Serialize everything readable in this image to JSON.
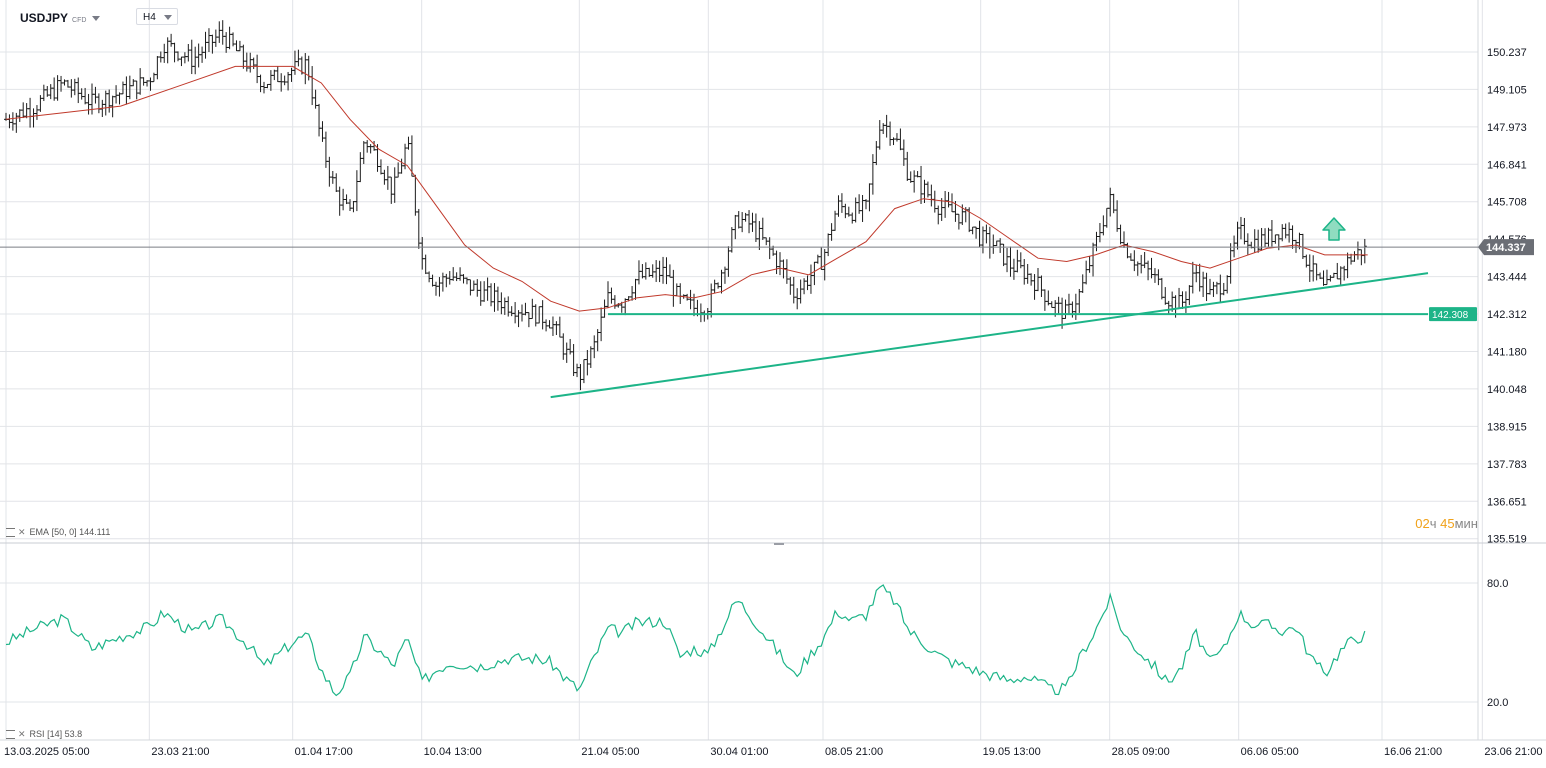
{
  "header": {
    "symbol": "USDJPY",
    "symbol_tag": "CFD",
    "timeframe": "H4"
  },
  "indicators": {
    "ema": {
      "label": "EMA",
      "params": "[50, 0]",
      "value": "144.111",
      "color": "#c0392b"
    },
    "rsi": {
      "label": "RSI",
      "params": "[14]",
      "value": "53.8",
      "color": "#1db488"
    }
  },
  "timer": {
    "hours": "02",
    "hours_unit": "ч",
    "minutes": "45",
    "minutes_unit": "мин"
  },
  "colors": {
    "candle": "#1a1a1a",
    "grid": "#e2e4e8",
    "trend": "#1db488",
    "price_tag": "#6b6e75"
  },
  "chart_data": [
    {
      "type": "candlestick",
      "title": "USDJPY",
      "x_tick_labels": [
        "13.03.2025  05:00",
        "23.03  21:00",
        "01.04  17:00",
        "10.04  13:00",
        "21.04  05:00",
        "30.04  01:00",
        "08.05  21:00",
        "19.05  13:00",
        "28.05  09:00",
        "06.06  05:00",
        "16.06  21:00",
        "23.06  21:00"
      ],
      "y_tick_labels": [
        "150.237",
        "149.105",
        "147.973",
        "146.841",
        "145.708",
        "144.576",
        "143.444",
        "142.312",
        "141.180",
        "140.048",
        "138.915",
        "137.783",
        "136.651",
        "135.519"
      ],
      "ylim": [
        135.519,
        150.8
      ],
      "current_price": "144.337",
      "support_level": {
        "value": 142.308,
        "label": "142.308"
      },
      "ascending_trendline": {
        "start": {
          "date": "19.04",
          "price": 139.8
        },
        "end": {
          "date": "16.06",
          "price": 143.55
        }
      },
      "signal": "up-arrow",
      "close_path": [
        {
          "date": "13.03",
          "price": 148.2
        },
        {
          "date": "15.03",
          "price": 148.6
        },
        {
          "date": "17.03",
          "price": 149.3
        },
        {
          "date": "19.03",
          "price": 148.7
        },
        {
          "date": "21.03",
          "price": 149.0
        },
        {
          "date": "23.03",
          "price": 149.4
        },
        {
          "date": "24.03",
          "price": 150.5
        },
        {
          "date": "26.03",
          "price": 150.0
        },
        {
          "date": "28.03",
          "price": 150.8
        },
        {
          "date": "30.03",
          "price": 149.8
        },
        {
          "date": "31.03",
          "price": 149.3
        },
        {
          "date": "01.04",
          "price": 149.7
        },
        {
          "date": "02.04",
          "price": 149.9
        },
        {
          "date": "03.04",
          "price": 147.5
        },
        {
          "date": "04.04",
          "price": 146.0
        },
        {
          "date": "05.04",
          "price": 145.3
        },
        {
          "date": "06.04",
          "price": 147.6
        },
        {
          "date": "07.04",
          "price": 147.0
        },
        {
          "date": "08.04",
          "price": 146.0
        },
        {
          "date": "09.04",
          "price": 147.5
        },
        {
          "date": "10.04",
          "price": 144.0
        },
        {
          "date": "11.04",
          "price": 143.2
        },
        {
          "date": "12.04",
          "price": 143.5
        },
        {
          "date": "14.04",
          "price": 143.0
        },
        {
          "date": "16.04",
          "price": 142.6
        },
        {
          "date": "18.04",
          "price": 142.3
        },
        {
          "date": "19.04",
          "price": 142.1
        },
        {
          "date": "20.04",
          "price": 141.2
        },
        {
          "date": "21.04",
          "price": 140.4
        },
        {
          "date": "22.04",
          "price": 141.3
        },
        {
          "date": "23.04",
          "price": 142.8
        },
        {
          "date": "24.04",
          "price": 142.7
        },
        {
          "date": "25.04",
          "price": 143.4
        },
        {
          "date": "27.04",
          "price": 143.6
        },
        {
          "date": "28.04",
          "price": 142.7
        },
        {
          "date": "29.04",
          "price": 142.5
        },
        {
          "date": "30.04",
          "price": 142.6
        },
        {
          "date": "01.05",
          "price": 143.7
        },
        {
          "date": "02.05",
          "price": 145.2
        },
        {
          "date": "03.05",
          "price": 145.0
        },
        {
          "date": "05.05",
          "price": 143.8
        },
        {
          "date": "06.05",
          "price": 142.9
        },
        {
          "date": "07.05",
          "price": 143.4
        },
        {
          "date": "08.05",
          "price": 144.0
        },
        {
          "date": "09.05",
          "price": 145.6
        },
        {
          "date": "10.05",
          "price": 145.4
        },
        {
          "date": "11.05",
          "price": 145.5
        },
        {
          "date": "12.05",
          "price": 148.2
        },
        {
          "date": "13.05",
          "price": 147.7
        },
        {
          "date": "14.05",
          "price": 146.5
        },
        {
          "date": "15.05",
          "price": 146.1
        },
        {
          "date": "16.05",
          "price": 145.6
        },
        {
          "date": "17.05",
          "price": 145.4
        },
        {
          "date": "18.05",
          "price": 145.2
        },
        {
          "date": "19.05",
          "price": 144.6
        },
        {
          "date": "20.05",
          "price": 144.4
        },
        {
          "date": "21.05",
          "price": 143.8
        },
        {
          "date": "22.05",
          "price": 143.6
        },
        {
          "date": "23.05",
          "price": 143.2
        },
        {
          "date": "24.05",
          "price": 142.6
        },
        {
          "date": "25.05",
          "price": 142.3
        },
        {
          "date": "26.05",
          "price": 143.0
        },
        {
          "date": "27.05",
          "price": 144.4
        },
        {
          "date": "28.05",
          "price": 145.8
        },
        {
          "date": "29.05",
          "price": 144.4
        },
        {
          "date": "30.05",
          "price": 143.8
        },
        {
          "date": "31.05",
          "price": 143.5
        },
        {
          "date": "01.06",
          "price": 142.8
        },
        {
          "date": "02.06",
          "price": 142.6
        },
        {
          "date": "03.06",
          "price": 143.6
        },
        {
          "date": "04.06",
          "price": 142.9
        },
        {
          "date": "05.06",
          "price": 143.3
        },
        {
          "date": "06.06",
          "price": 144.8
        },
        {
          "date": "07.06",
          "price": 144.5
        },
        {
          "date": "08.06",
          "price": 144.6
        },
        {
          "date": "09.06",
          "price": 144.9
        },
        {
          "date": "10.06",
          "price": 144.7
        },
        {
          "date": "11.06",
          "price": 143.7
        },
        {
          "date": "12.06",
          "price": 143.0
        },
        {
          "date": "13.06",
          "price": 143.6
        },
        {
          "date": "14.06",
          "price": 144.1
        },
        {
          "date": "15.06",
          "price": 144.3
        }
      ],
      "ema_path": [
        {
          "date": "13.03",
          "price": 148.2
        },
        {
          "date": "17.03",
          "price": 148.4
        },
        {
          "date": "21.03",
          "price": 148.6
        },
        {
          "date": "25.03",
          "price": 149.2
        },
        {
          "date": "29.03",
          "price": 149.8
        },
        {
          "date": "01.04",
          "price": 149.8
        },
        {
          "date": "03.04",
          "price": 149.3
        },
        {
          "date": "05.04",
          "price": 148.2
        },
        {
          "date": "07.04",
          "price": 147.3
        },
        {
          "date": "09.04",
          "price": 146.8
        },
        {
          "date": "11.04",
          "price": 145.6
        },
        {
          "date": "13.04",
          "price": 144.4
        },
        {
          "date": "15.04",
          "price": 143.7
        },
        {
          "date": "17.04",
          "price": 143.3
        },
        {
          "date": "19.04",
          "price": 142.7
        },
        {
          "date": "21.04",
          "price": 142.4
        },
        {
          "date": "23.04",
          "price": 142.5
        },
        {
          "date": "25.04",
          "price": 142.8
        },
        {
          "date": "27.04",
          "price": 142.9
        },
        {
          "date": "29.04",
          "price": 142.8
        },
        {
          "date": "01.05",
          "price": 143.0
        },
        {
          "date": "03.05",
          "price": 143.5
        },
        {
          "date": "05.05",
          "price": 143.7
        },
        {
          "date": "07.05",
          "price": 143.5
        },
        {
          "date": "09.05",
          "price": 144.0
        },
        {
          "date": "11.05",
          "price": 144.5
        },
        {
          "date": "13.05",
          "price": 145.5
        },
        {
          "date": "15.05",
          "price": 145.8
        },
        {
          "date": "17.05",
          "price": 145.7
        },
        {
          "date": "19.05",
          "price": 145.2
        },
        {
          "date": "21.05",
          "price": 144.6
        },
        {
          "date": "23.05",
          "price": 144.0
        },
        {
          "date": "25.05",
          "price": 143.9
        },
        {
          "date": "27.05",
          "price": 144.1
        },
        {
          "date": "29.05",
          "price": 144.4
        },
        {
          "date": "31.05",
          "price": 144.2
        },
        {
          "date": "02.06",
          "price": 143.9
        },
        {
          "date": "04.06",
          "price": 143.7
        },
        {
          "date": "06.06",
          "price": 144.0
        },
        {
          "date": "08.06",
          "price": 144.3
        },
        {
          "date": "10.06",
          "price": 144.4
        },
        {
          "date": "12.06",
          "price": 144.1
        },
        {
          "date": "15.06",
          "price": 144.1
        }
      ]
    },
    {
      "type": "line",
      "title": "RSI [14]",
      "y_tick_labels": [
        "80.0",
        "20.0"
      ],
      "ylim": [
        15,
        85
      ],
      "path": [
        {
          "date": "13.03",
          "value": 50
        },
        {
          "date": "15.03",
          "value": 57
        },
        {
          "date": "17.03",
          "value": 62
        },
        {
          "date": "19.03",
          "value": 47
        },
        {
          "date": "21.03",
          "value": 53
        },
        {
          "date": "23.03",
          "value": 58
        },
        {
          "date": "24.03",
          "value": 65
        },
        {
          "date": "26.03",
          "value": 55
        },
        {
          "date": "28.03",
          "value": 62
        },
        {
          "date": "30.03",
          "value": 48
        },
        {
          "date": "31.03",
          "value": 38
        },
        {
          "date": "01.04",
          "value": 50
        },
        {
          "date": "02.04",
          "value": 54
        },
        {
          "date": "03.04",
          "value": 36
        },
        {
          "date": "04.04",
          "value": 24
        },
        {
          "date": "05.04",
          "value": 33
        },
        {
          "date": "06.04",
          "value": 53
        },
        {
          "date": "07.04",
          "value": 46
        },
        {
          "date": "08.04",
          "value": 38
        },
        {
          "date": "09.04",
          "value": 52
        },
        {
          "date": "10.04",
          "value": 30
        },
        {
          "date": "11.04",
          "value": 36
        },
        {
          "date": "12.04",
          "value": 40
        },
        {
          "date": "14.04",
          "value": 38
        },
        {
          "date": "16.04",
          "value": 42
        },
        {
          "date": "18.04",
          "value": 42
        },
        {
          "date": "19.04",
          "value": 40
        },
        {
          "date": "20.04",
          "value": 32
        },
        {
          "date": "21.04",
          "value": 26
        },
        {
          "date": "22.04",
          "value": 42
        },
        {
          "date": "23.04",
          "value": 57
        },
        {
          "date": "24.04",
          "value": 55
        },
        {
          "date": "25.04",
          "value": 60
        },
        {
          "date": "27.04",
          "value": 61
        },
        {
          "date": "28.04",
          "value": 43
        },
        {
          "date": "29.04",
          "value": 47
        },
        {
          "date": "30.04",
          "value": 44
        },
        {
          "date": "01.05",
          "value": 58
        },
        {
          "date": "02.05",
          "value": 72
        },
        {
          "date": "03.05",
          "value": 63
        },
        {
          "date": "05.05",
          "value": 44
        },
        {
          "date": "06.05",
          "value": 33
        },
        {
          "date": "07.05",
          "value": 43
        },
        {
          "date": "08.05",
          "value": 52
        },
        {
          "date": "09.05",
          "value": 66
        },
        {
          "date": "10.05",
          "value": 61
        },
        {
          "date": "11.05",
          "value": 64
        },
        {
          "date": "12.05",
          "value": 78
        },
        {
          "date": "13.05",
          "value": 71
        },
        {
          "date": "14.05",
          "value": 56
        },
        {
          "date": "15.05",
          "value": 50
        },
        {
          "date": "16.05",
          "value": 44
        },
        {
          "date": "17.05",
          "value": 40
        },
        {
          "date": "18.05",
          "value": 38
        },
        {
          "date": "19.05",
          "value": 35
        },
        {
          "date": "20.05",
          "value": 33
        },
        {
          "date": "21.05",
          "value": 31
        },
        {
          "date": "22.05",
          "value": 33
        },
        {
          "date": "23.05",
          "value": 30
        },
        {
          "date": "24.05",
          "value": 26
        },
        {
          "date": "25.05",
          "value": 27
        },
        {
          "date": "26.05",
          "value": 44
        },
        {
          "date": "27.05",
          "value": 56
        },
        {
          "date": "28.05",
          "value": 72
        },
        {
          "date": "29.05",
          "value": 54
        },
        {
          "date": "30.05",
          "value": 46
        },
        {
          "date": "31.05",
          "value": 39
        },
        {
          "date": "01.06",
          "value": 30
        },
        {
          "date": "02.06",
          "value": 37
        },
        {
          "date": "03.06",
          "value": 55
        },
        {
          "date": "04.06",
          "value": 40
        },
        {
          "date": "05.06",
          "value": 47
        },
        {
          "date": "06.06",
          "value": 65
        },
        {
          "date": "07.06",
          "value": 59
        },
        {
          "date": "08.06",
          "value": 59
        },
        {
          "date": "09.06",
          "value": 56
        },
        {
          "date": "10.06",
          "value": 58
        },
        {
          "date": "11.06",
          "value": 43
        },
        {
          "date": "12.06",
          "value": 34
        },
        {
          "date": "13.06",
          "value": 45
        },
        {
          "date": "14.06",
          "value": 52
        },
        {
          "date": "15.06",
          "value": 54
        }
      ]
    }
  ]
}
